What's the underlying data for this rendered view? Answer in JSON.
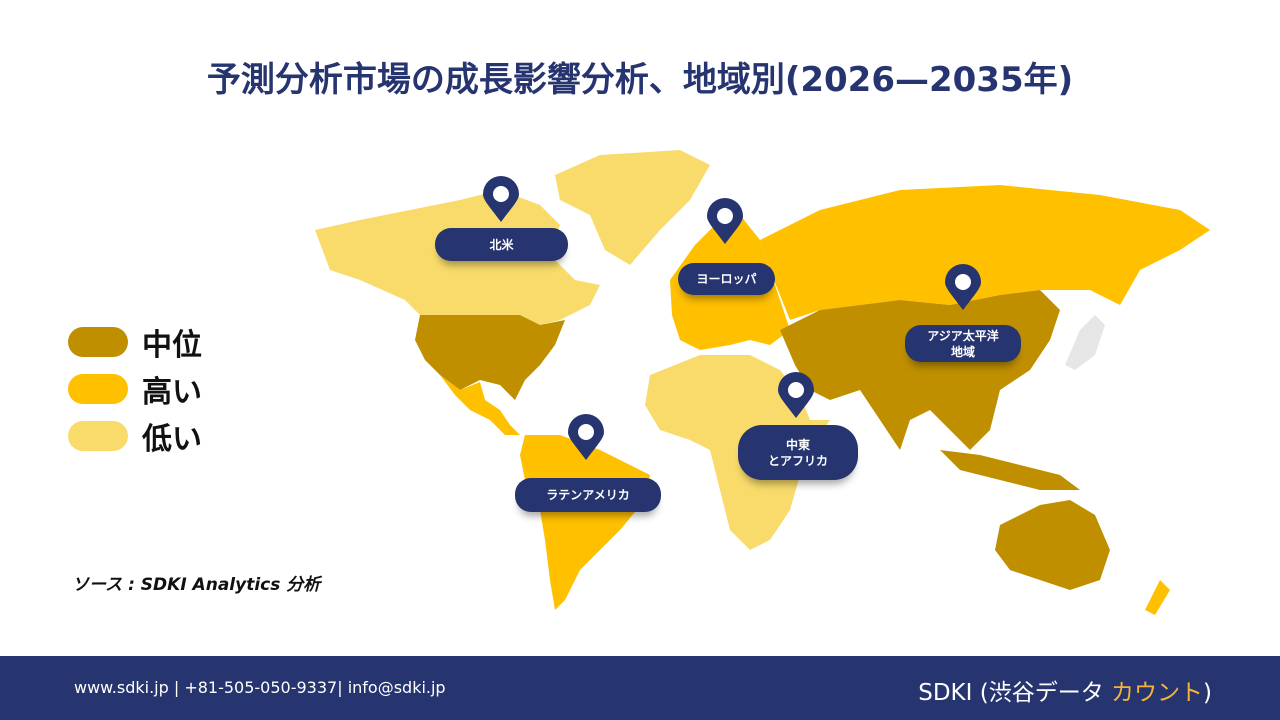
{
  "title": "予測分析市場の成長影響分析、地域別(2026—2035年)",
  "legend": [
    {
      "label": "中位",
      "color": "#BF8F00"
    },
    {
      "label": "高い",
      "color": "#FFC000"
    },
    {
      "label": "低い",
      "color": "#F8DB6A"
    }
  ],
  "source": "ソース : SDKI Analytics 分析",
  "regions": [
    {
      "label": "北米",
      "icon": "map-pin-icon"
    },
    {
      "label": "ヨーロッパ",
      "icon": "map-pin-icon"
    },
    {
      "label": "アジア太平洋地域",
      "icon": "map-pin-icon"
    },
    {
      "label": "中東とアフリカ",
      "icon": "map-pin-icon"
    },
    {
      "label": "ラテンアメリカ",
      "icon": "map-pin-icon"
    }
  ],
  "region_labels": {
    "na": "北米",
    "eu": "ヨーロッパ",
    "apac_1": "アジア太平洋",
    "apac_2": "地域",
    "mea_1": "中東",
    "mea_2": "とアフリカ",
    "latam": "ラテンアメリカ"
  },
  "footer": {
    "contact": "www.sdki.jp | +81-505-050-9337| info@sdki.jp",
    "brand_main": "SDKI (渋谷データ ",
    "brand_accent": "カウント",
    "brand_end": ")"
  },
  "colors": {
    "navy": "#263470",
    "mid": "#BF8F00",
    "high": "#FFC000",
    "low": "#F8DB6A",
    "accent": "#F5B335"
  }
}
